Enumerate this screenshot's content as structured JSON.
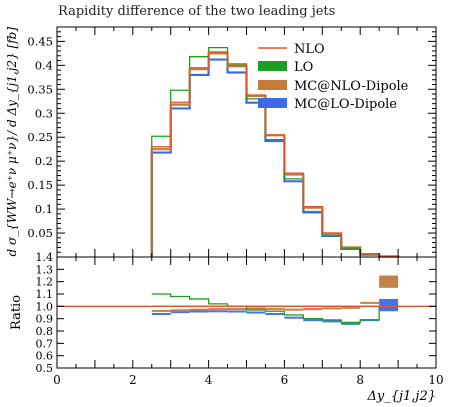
{
  "chart_data": {
    "type": "line",
    "title": "Rapidity difference of the two leading jets",
    "ylabel": "d σ_{WW→e⁺ν μ⁺ν}/ d Δy_{j1,j2} [fb]",
    "xlabel": "Δy_{j1,j2}",
    "ratio_ylabel": "Ratio",
    "xlim": [
      0,
      10
    ],
    "ylim": [
      0,
      0.48
    ],
    "ratio_ylim": [
      0.5,
      1.4
    ],
    "bin_edges": [
      2.5,
      3.0,
      3.5,
      4.0,
      4.5,
      5.0,
      5.5,
      6.0,
      6.5,
      7.0,
      7.5,
      8.0,
      8.5,
      9.0
    ],
    "x_ticks": [
      0,
      2,
      4,
      6,
      8,
      10
    ],
    "y_ticks": [
      0.05,
      0.1,
      0.15,
      0.2,
      0.25,
      0.3,
      0.35,
      0.4,
      0.45
    ],
    "ratio_ticks": [
      0.5,
      0.6,
      0.7,
      0.8,
      0.9,
      1.0,
      1.1,
      1.2,
      1.3,
      1.4
    ],
    "legend_position": "top-right",
    "series": [
      {
        "name": "NLO",
        "color": "#e5532b",
        "style": "line",
        "values": [
          0.23,
          0.323,
          0.395,
          0.428,
          0.4,
          0.338,
          0.255,
          0.175,
          0.105,
          0.05,
          0.02,
          0.006,
          0.001
        ],
        "ratio": [
          1.0,
          1.0,
          1.0,
          1.0,
          1.0,
          1.0,
          1.0,
          1.0,
          1.0,
          1.0,
          1.0,
          1.0,
          1.0
        ]
      },
      {
        "name": "LO",
        "color": "#1e9e1e",
        "style": "line",
        "values": [
          0.252,
          0.348,
          0.418,
          0.437,
          0.403,
          0.33,
          0.245,
          0.163,
          0.095,
          0.045,
          0.018,
          0.005,
          0.001
        ],
        "ratio": [
          1.1,
          1.08,
          1.06,
          1.02,
          1.0,
          0.97,
          0.96,
          0.93,
          0.9,
          0.89,
          0.87,
          0.89,
          1.0
        ]
      },
      {
        "name": "MC@NLO-Dipole",
        "color": "#c17c3a",
        "style": "band",
        "values": [
          0.225,
          0.318,
          0.392,
          0.425,
          0.398,
          0.336,
          0.254,
          0.172,
          0.103,
          0.049,
          0.02,
          0.006,
          0.001
        ],
        "ratio": [
          0.965,
          0.97,
          0.975,
          0.98,
          0.98,
          0.985,
          0.98,
          0.975,
          0.98,
          0.985,
          0.99,
          1.03,
          1.2
        ]
      },
      {
        "name": "MC@LO-Dipole",
        "color": "#3d6be8",
        "style": "band",
        "values": [
          0.218,
          0.31,
          0.38,
          0.412,
          0.385,
          0.322,
          0.242,
          0.158,
          0.093,
          0.044,
          0.017,
          0.005,
          0.001
        ],
        "ratio": [
          0.94,
          0.955,
          0.96,
          0.962,
          0.96,
          0.952,
          0.94,
          0.91,
          0.89,
          0.88,
          0.86,
          0.89,
          1.01
        ]
      }
    ]
  }
}
